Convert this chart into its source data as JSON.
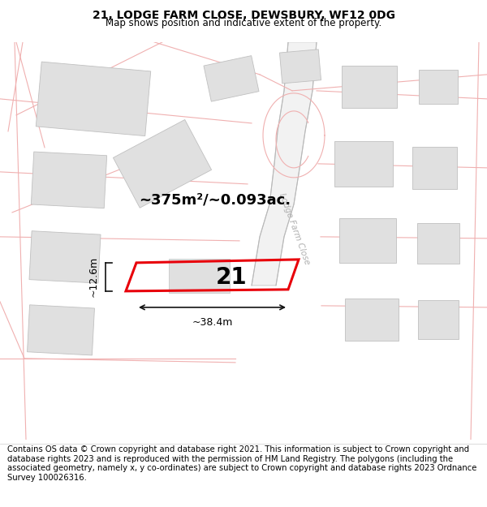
{
  "title_line1": "21, LODGE FARM CLOSE, DEWSBURY, WF12 0DG",
  "title_line2": "Map shows position and indicative extent of the property.",
  "footer_text": "Contains OS data © Crown copyright and database right 2021. This information is subject to Crown copyright and database rights 2023 and is reproduced with the permission of HM Land Registry. The polygons (including the associated geometry, namely x, y co-ordinates) are subject to Crown copyright and database rights 2023 Ordnance Survey 100026316.",
  "area_text": "~375m²/~0.093ac.",
  "number_label": "21",
  "dim_width": "~38.4m",
  "dim_height": "~12.6m",
  "road_label": "Lodge Farm Close",
  "map_bg_color": "#ffffff",
  "highlight_color": "#e8000a",
  "building_color": "#e0e0e0",
  "building_edge_color": "#c0c0c0",
  "road_fill_color": "#f0f0f0",
  "road_line_color": "#d0a0a0",
  "pink_line_color": "#f0b0b0",
  "dim_line_color": "#111111",
  "title_fontsize": 10,
  "subtitle_fontsize": 8.5,
  "footer_fontsize": 7.2,
  "area_fontsize": 13,
  "label_fontsize": 20,
  "dim_fontsize": 9,
  "road_text_color": "#b0b0b0",
  "road_text_size": 7.5
}
